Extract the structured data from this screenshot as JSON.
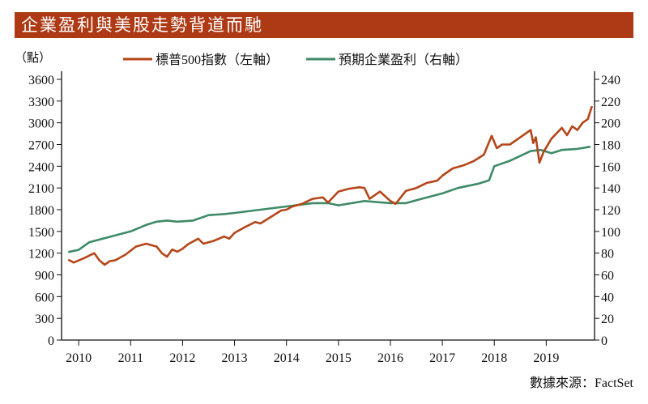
{
  "chart_data": {
    "type": "line",
    "title": "企業盈利與美股走勢背道而馳",
    "left_unit_label": "（點）",
    "source": "數據來源：FactSet",
    "xlim": [
      2009.67,
      2019.93
    ],
    "x_ticks": [
      2010,
      2011,
      2012,
      2013,
      2014,
      2015,
      2016,
      2017,
      2018,
      2019
    ],
    "x_tick_labels": [
      "2010",
      "2011",
      "2012",
      "2013",
      "2014",
      "2015",
      "2016",
      "2017",
      "2018",
      "2019"
    ],
    "y_left": {
      "lim": [
        0,
        3600
      ],
      "ticks": [
        0,
        300,
        600,
        900,
        1200,
        1500,
        1800,
        2100,
        2400,
        2700,
        3000,
        3300,
        3600
      ]
    },
    "y_right": {
      "lim": [
        0,
        240
      ],
      "ticks": [
        0,
        20,
        40,
        60,
        80,
        100,
        120,
        140,
        160,
        180,
        200,
        220,
        240
      ]
    },
    "grid": false,
    "legend_position": "top",
    "series": [
      {
        "name": "標普500指數（左軸）",
        "axis": "left",
        "color": "#b5461a",
        "x": [
          2009.8,
          2009.9,
          2010.1,
          2010.3,
          2010.4,
          2010.5,
          2010.6,
          2010.7,
          2010.9,
          2011.1,
          2011.3,
          2011.5,
          2011.6,
          2011.7,
          2011.8,
          2011.9,
          2012.0,
          2012.1,
          2012.3,
          2012.4,
          2012.6,
          2012.8,
          2012.9,
          2013.0,
          2013.2,
          2013.4,
          2013.5,
          2013.7,
          2013.9,
          2014.0,
          2014.1,
          2014.3,
          2014.5,
          2014.7,
          2014.8,
          2015.0,
          2015.2,
          2015.4,
          2015.5,
          2015.6,
          2015.7,
          2015.8,
          2016.0,
          2016.1,
          2016.3,
          2016.5,
          2016.7,
          2016.9,
          2017.0,
          2017.2,
          2017.4,
          2017.6,
          2017.8,
          2017.95,
          2018.05,
          2018.15,
          2018.3,
          2018.5,
          2018.7,
          2018.75,
          2018.8,
          2018.87,
          2018.95,
          2019.1,
          2019.3,
          2019.4,
          2019.5,
          2019.6,
          2019.7,
          2019.8,
          2019.88
        ],
        "values": [
          1110,
          1070,
          1130,
          1200,
          1100,
          1040,
          1090,
          1100,
          1180,
          1290,
          1330,
          1290,
          1200,
          1150,
          1250,
          1220,
          1260,
          1320,
          1400,
          1330,
          1370,
          1430,
          1400,
          1480,
          1560,
          1630,
          1610,
          1700,
          1790,
          1800,
          1840,
          1880,
          1950,
          1970,
          1900,
          2050,
          2090,
          2110,
          2100,
          1950,
          2000,
          2050,
          1920,
          1880,
          2060,
          2100,
          2170,
          2200,
          2270,
          2370,
          2410,
          2470,
          2560,
          2820,
          2650,
          2700,
          2700,
          2800,
          2900,
          2720,
          2800,
          2450,
          2600,
          2780,
          2930,
          2830,
          2950,
          2900,
          3000,
          3050,
          3230
        ]
      },
      {
        "name": "預期企業盈利（右軸）",
        "axis": "right",
        "color": "#3f8a68",
        "x": [
          2009.8,
          2010.0,
          2010.2,
          2010.6,
          2011.0,
          2011.3,
          2011.5,
          2011.7,
          2011.9,
          2012.2,
          2012.5,
          2012.8,
          2013.0,
          2013.5,
          2014.0,
          2014.5,
          2014.8,
          2015.0,
          2015.5,
          2016.0,
          2016.3,
          2016.6,
          2017.0,
          2017.3,
          2017.7,
          2017.9,
          2018.0,
          2018.3,
          2018.7,
          2018.9,
          2019.1,
          2019.3,
          2019.6,
          2019.85
        ],
        "values": [
          81,
          83,
          90,
          95,
          100,
          106,
          109,
          110,
          109,
          110,
          115,
          116,
          117,
          120,
          123,
          126,
          126,
          124,
          128,
          126,
          126,
          130,
          135,
          140,
          144,
          147,
          160,
          165,
          174,
          175,
          172,
          175,
          176,
          178
        ]
      }
    ]
  }
}
